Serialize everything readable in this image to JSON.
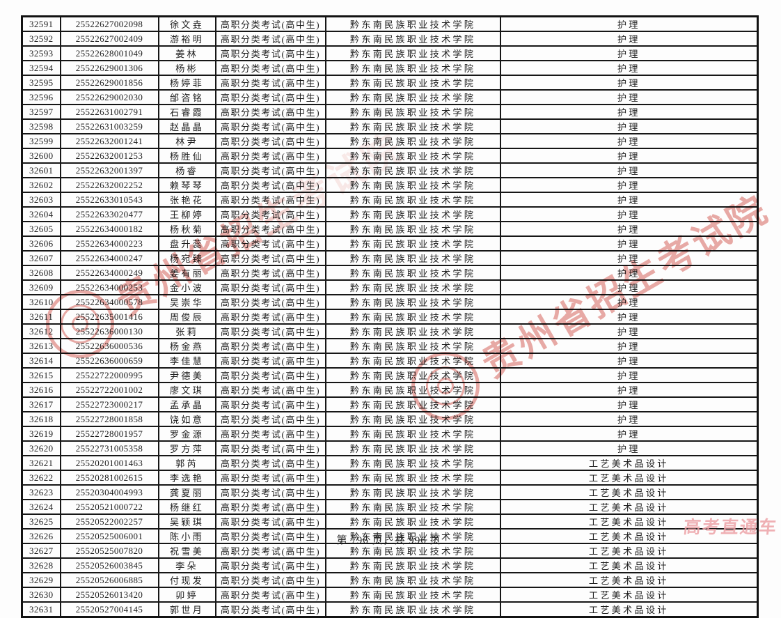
{
  "table": {
    "shared": {
      "exam_type": "高职分类考试(高中生)",
      "school": "黔东南民族职业技术学院"
    },
    "rows": [
      {
        "seq": "32591",
        "no": "25522627002098",
        "name": "徐文垚",
        "major": "护理"
      },
      {
        "seq": "32592",
        "no": "25522627002409",
        "name": "游裕明",
        "major": "护理"
      },
      {
        "seq": "32593",
        "no": "25522628001049",
        "name": "姜林",
        "major": "护理"
      },
      {
        "seq": "32594",
        "no": "25522629001306",
        "name": "杨彬",
        "major": "护理"
      },
      {
        "seq": "32595",
        "no": "25522629001856",
        "name": "杨婷菲",
        "major": "护理"
      },
      {
        "seq": "32596",
        "no": "25522629002030",
        "name": "邰咨铭",
        "major": "护理"
      },
      {
        "seq": "32597",
        "no": "25522631002791",
        "name": "石睿霞",
        "major": "护理"
      },
      {
        "seq": "32598",
        "no": "25522631003259",
        "name": "赵晶晶",
        "major": "护理"
      },
      {
        "seq": "32599",
        "no": "25522632001241",
        "name": "林尹",
        "major": "护理"
      },
      {
        "seq": "32600",
        "no": "25522632001253",
        "name": "杨胜仙",
        "major": "护理"
      },
      {
        "seq": "32601",
        "no": "25522632001397",
        "name": "杨睿",
        "major": "护理"
      },
      {
        "seq": "32602",
        "no": "25522632002252",
        "name": "赖琴琴",
        "major": "护理"
      },
      {
        "seq": "32603",
        "no": "25522633010543",
        "name": "张艳花",
        "major": "护理"
      },
      {
        "seq": "32604",
        "no": "25522633020477",
        "name": "王柳婷",
        "major": "护理"
      },
      {
        "seq": "32605",
        "no": "25522634000182",
        "name": "杨秋菊",
        "major": "护理"
      },
      {
        "seq": "32606",
        "no": "25522634000223",
        "name": "盘升蕊",
        "major": "护理"
      },
      {
        "seq": "32607",
        "no": "25522634000247",
        "name": "杨宛臻",
        "major": "护理"
      },
      {
        "seq": "32608",
        "no": "25522634000249",
        "name": "姜有丽",
        "major": "护理"
      },
      {
        "seq": "32609",
        "no": "25522634000253",
        "name": "金小波",
        "major": "护理"
      },
      {
        "seq": "32610",
        "no": "25522634000578",
        "name": "吴崇华",
        "major": "护理"
      },
      {
        "seq": "32611",
        "no": "25522635001416",
        "name": "周俊辰",
        "major": "护理"
      },
      {
        "seq": "32612",
        "no": "25522636000130",
        "name": "张莉",
        "major": "护理"
      },
      {
        "seq": "32613",
        "no": "25522636000536",
        "name": "杨金燕",
        "major": "护理"
      },
      {
        "seq": "32614",
        "no": "25522636000659",
        "name": "李佳慧",
        "major": "护理"
      },
      {
        "seq": "32615",
        "no": "25522722000995",
        "name": "尹德美",
        "major": "护理"
      },
      {
        "seq": "32616",
        "no": "25522722001002",
        "name": "廖文琪",
        "major": "护理"
      },
      {
        "seq": "32617",
        "no": "25522723000217",
        "name": "孟承晶",
        "major": "护理"
      },
      {
        "seq": "32618",
        "no": "25522728001858",
        "name": "饶如意",
        "major": "护理"
      },
      {
        "seq": "32619",
        "no": "25522728001957",
        "name": "罗金源",
        "major": "护理"
      },
      {
        "seq": "32620",
        "no": "25522731005358",
        "name": "罗方萍",
        "major": "护理"
      },
      {
        "seq": "32621",
        "no": "25520201001463",
        "name": "郭芮",
        "major": "工艺美术品设计"
      },
      {
        "seq": "32622",
        "no": "25520281002615",
        "name": "李选艳",
        "major": "工艺美术品设计"
      },
      {
        "seq": "32623",
        "no": "25520304004993",
        "name": "龚夏丽",
        "major": "工艺美术品设计"
      },
      {
        "seq": "32624",
        "no": "25520521000722",
        "name": "杨继红",
        "major": "工艺美术品设计"
      },
      {
        "seq": "32625",
        "no": "25520522002257",
        "name": "吴颖琪",
        "major": "工艺美术品设计"
      },
      {
        "seq": "32626",
        "no": "25520525006001",
        "name": "陈小雨",
        "major": "工艺美术品设计"
      },
      {
        "seq": "32627",
        "no": "25520525007820",
        "name": "祝雪美",
        "major": "工艺美术品设计"
      },
      {
        "seq": "32628",
        "no": "25520526003845",
        "name": "李朵",
        "major": "工艺美术品设计"
      },
      {
        "seq": "32629",
        "no": "25520526006885",
        "name": "付现发",
        "major": "工艺美术品设计"
      },
      {
        "seq": "32630",
        "no": "25520526013420",
        "name": "卯婷",
        "major": "工艺美术品设计"
      },
      {
        "seq": "32631",
        "no": "25520527004145",
        "name": "郭世月",
        "major": "工艺美术品设计"
      }
    ]
  },
  "footer": {
    "page_indicator": "第 796 页，共 996 页"
  },
  "watermarks": {
    "seal_text": "贵州省招生考试院",
    "seal_color": "#d4574d",
    "brand_text": "高考直通车",
    "brand_color": "#eda3a8"
  }
}
